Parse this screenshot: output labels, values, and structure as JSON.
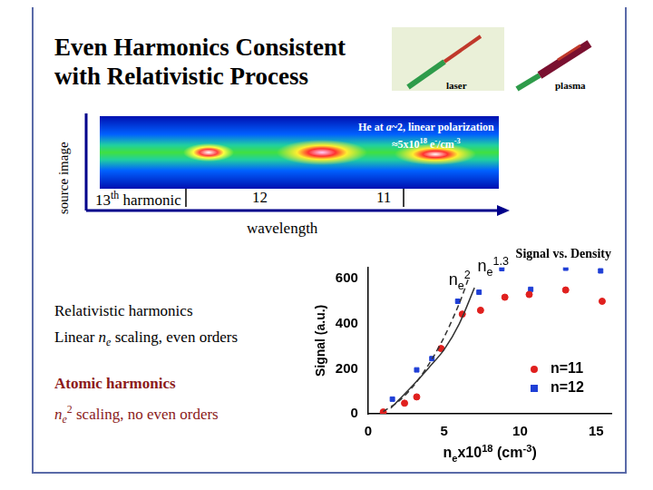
{
  "slide": {
    "title_lines": [
      "Even Harmonics Consistent",
      "with Relativistic Process"
    ],
    "icons": {
      "laser": "laser",
      "plasma": "plasma"
    },
    "source_image": {
      "side_label": "source image",
      "caption": [
        [
          {
            "t": "He at "
          },
          {
            "t": "a",
            "i": true
          },
          {
            "t": "~2, linear polarization"
          }
        ],
        [
          {
            "t": "≈5x10"
          },
          {
            "t": "18",
            "sup": true
          },
          {
            "t": " e"
          },
          {
            "t": "-",
            "sup": true
          },
          {
            "t": "/cm"
          },
          {
            "t": "-3",
            "sup": true
          }
        ]
      ],
      "harmonics": [
        [
          {
            "t": "13"
          },
          {
            "t": "th",
            "sup": true
          },
          {
            "t": " harmonic"
          }
        ],
        [
          {
            "t": "12"
          }
        ],
        [
          {
            "t": "11"
          }
        ]
      ],
      "axis_label": "wavelength"
    },
    "notes": [
      {
        "heading": "Relativistic harmonics",
        "color": "#000000",
        "line": [
          {
            "t": "Linear "
          },
          {
            "t": "n",
            "i": true
          },
          {
            "t": "e",
            "sub": true,
            "i": true
          },
          {
            "t": " scaling, even orders"
          }
        ]
      },
      {
        "heading": "Atomic harmonics",
        "color": "#8b1a1a",
        "line": [
          {
            "t": "n",
            "i": true
          },
          {
            "t": "e",
            "sub": true,
            "i": true
          },
          {
            "t": "2",
            "sup": true
          },
          {
            "t": " scaling, no even orders"
          }
        ]
      }
    ]
  },
  "chart_data": {
    "type": "scatter",
    "title": "Signal vs. Density",
    "y_label": "Signal (a.u.)",
    "x_label": [
      {
        "t": "n"
      },
      {
        "t": "e",
        "sub": true
      },
      {
        "t": "x10"
      },
      {
        "t": "18",
        "sup": true
      },
      {
        "t": " (cm"
      },
      {
        "t": "-3",
        "sup": true
      },
      {
        "t": ")"
      }
    ],
    "xlim": [
      0,
      16
    ],
    "xticks": [
      0,
      5,
      10,
      15
    ],
    "ylim": [
      0,
      650
    ],
    "yticks": [
      0,
      200,
      400,
      600
    ],
    "grid": false,
    "legend": "right",
    "series": [
      {
        "type": "line",
        "line_style": "dashed",
        "color": "#333333",
        "x": [
          1,
          2,
          3,
          4,
          5,
          6,
          6.6
        ],
        "values": [
          10,
          55,
          125,
          220,
          340,
          490,
          600
        ]
      },
      {
        "type": "line",
        "line_style": "solid",
        "color": "#333333",
        "x": [
          1.5,
          2,
          3,
          4,
          5,
          6,
          7
        ],
        "values": [
          25,
          60,
          130,
          205,
          285,
          400,
          560
        ]
      },
      {
        "name": "n=11",
        "type": "scatter",
        "marker": "circle",
        "color": "#e0201e",
        "x": [
          1,
          2.4,
          3.2,
          4.8,
          6.2,
          7.4,
          9,
          10.6,
          13,
          15.4
        ],
        "values": [
          8,
          47,
          75,
          290,
          443,
          460,
          518,
          530,
          550,
          500
        ]
      },
      {
        "name": "n=12",
        "type": "scatter",
        "marker": "square",
        "color": "#1f3fd6",
        "x": [
          1.6,
          3.2,
          4.2,
          4.8,
          5.9,
          7.3,
          8.8,
          10.7,
          13,
          15.3
        ],
        "values": [
          65,
          195,
          245,
          290,
          500,
          540,
          645,
          553,
          647,
          635
        ]
      }
    ],
    "annotations": [
      {
        "parts": [
          {
            "t": "n"
          },
          {
            "t": "e",
            "sub": true
          },
          {
            "t": "2",
            "sup": true
          }
        ],
        "x": 5.3,
        "y": 590
      },
      {
        "parts": [
          {
            "t": "n"
          },
          {
            "t": "e",
            "sub": true
          },
          {
            "t": "1.3",
            "sup": true
          }
        ],
        "x": 7.2,
        "y": 650
      }
    ]
  }
}
